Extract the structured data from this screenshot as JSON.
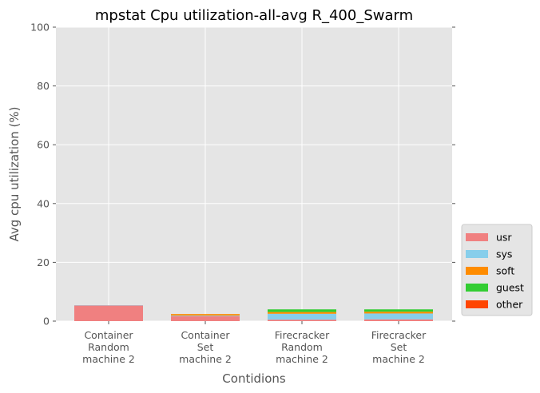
{
  "chart_data": {
    "type": "bar",
    "stacked": true,
    "title": "mpstat Cpu utilization-all-avg R_400_Swarm",
    "xlabel": "Contidions",
    "ylabel": "Avg cpu utilization (%)",
    "ylim": [
      0,
      100
    ],
    "yticks": [
      0,
      20,
      40,
      60,
      80,
      100
    ],
    "grid": true,
    "legend_position": "right",
    "categories": [
      [
        "Container",
        "Random",
        "machine 2"
      ],
      [
        "Container",
        "Set",
        "machine 2"
      ],
      [
        "Firecracker",
        "Random",
        "machine 2"
      ],
      [
        "Firecracker",
        "Set",
        "machine 2"
      ]
    ],
    "series": [
      {
        "name": "usr",
        "color": "#f08080",
        "values": [
          5.3,
          1.7,
          0.5,
          0.6
        ]
      },
      {
        "name": "sys",
        "color": "#87ceeb",
        "values": [
          0.1,
          0.2,
          2.0,
          2.0
        ]
      },
      {
        "name": "soft",
        "color": "#ff8c00",
        "values": [
          0.0,
          0.5,
          0.6,
          0.6
        ]
      },
      {
        "name": "guest",
        "color": "#32cd32",
        "values": [
          0.0,
          0.0,
          0.9,
          0.8
        ]
      },
      {
        "name": "other",
        "color": "#ff4500",
        "values": [
          0.0,
          0.0,
          0.0,
          0.0
        ]
      }
    ]
  }
}
